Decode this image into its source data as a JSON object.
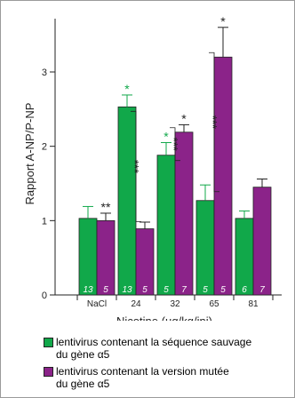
{
  "chart_data": {
    "type": "bar",
    "xlabel": "Nicotine (µg/kg/inj)",
    "ylabel": "Rapport A-NP/P-NP",
    "ylim": [
      0,
      3.5
    ],
    "yticks": [
      "0",
      "1",
      "2",
      "3"
    ],
    "categories": [
      "NaCl",
      "24",
      "32",
      "65",
      "81"
    ],
    "series": [
      {
        "name": "lentivirus contenant la séquence sauvage du gène α5",
        "color": "#11a84a",
        "values": [
          1.03,
          2.53,
          1.88,
          1.27,
          1.03
        ],
        "errors": [
          0.16,
          0.16,
          0.17,
          0.21,
          0.1
        ],
        "n": [
          "13",
          "13",
          "5",
          "5",
          "6"
        ],
        "marks": [
          "",
          "*",
          "*",
          "",
          ""
        ]
      },
      {
        "name": "lentivirus contenant la version mutée du gène α5",
        "color": "#8b2389",
        "values": [
          1.0,
          0.89,
          2.19,
          3.2,
          1.45
        ],
        "errors": [
          0.1,
          0.09,
          0.1,
          0.4,
          0.11
        ],
        "n": [
          "5",
          "5",
          "7",
          "5",
          "7"
        ],
        "marks": [
          "**",
          "",
          "*",
          "*",
          ""
        ]
      }
    ],
    "brackets": [
      "***",
      "***",
      "***"
    ],
    "legend": {
      "position": "bottom",
      "items": [
        {
          "line1": "lentivirus contenant la séquence sauvage",
          "line2": "du gène α5",
          "color": "#11a84a"
        },
        {
          "line1": "lentivirus contenant la version mutée",
          "line2": "du gène α5",
          "color": "#8b2389"
        }
      ]
    }
  }
}
